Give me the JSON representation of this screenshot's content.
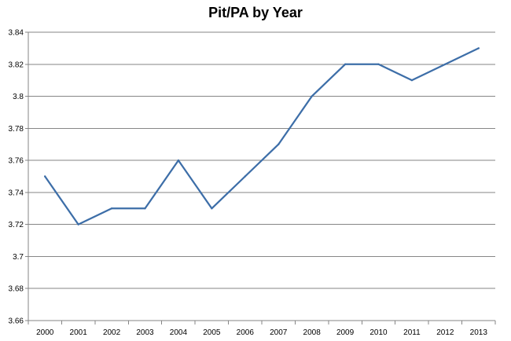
{
  "chart_data": {
    "type": "line",
    "title": "Pit/PA by Year",
    "xlabel": "",
    "ylabel": "",
    "categories": [
      "2000",
      "2001",
      "2002",
      "2003",
      "2004",
      "2005",
      "2006",
      "2007",
      "2008",
      "2009",
      "2010",
      "2011",
      "2012",
      "2013"
    ],
    "series": [
      {
        "values": [
          3.75,
          3.72,
          3.73,
          3.73,
          3.76,
          3.73,
          3.75,
          3.77,
          3.8,
          3.82,
          3.82,
          3.81,
          3.82,
          3.83
        ],
        "color": "#3d6ea8"
      }
    ],
    "ylim": [
      3.66,
      3.84
    ],
    "yticks": [
      "3.66",
      "3.68",
      "3.7",
      "3.72",
      "3.74",
      "3.76",
      "3.78",
      "3.8",
      "3.82",
      "3.84"
    ],
    "grid": true,
    "legend": "none"
  }
}
